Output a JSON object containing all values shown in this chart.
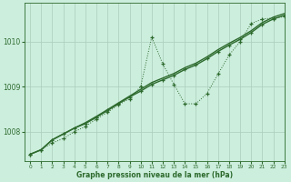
{
  "title": "Graphe pression niveau de la mer (hPa)",
  "bg_color": "#cceedd",
  "grid_color": "#aaccbb",
  "line_color": "#2d6a2d",
  "xlim": [
    -0.5,
    23
  ],
  "ylim": [
    1007.35,
    1010.85
  ],
  "yticks": [
    1008,
    1009,
    1010
  ],
  "ytick_labels": [
    "1008",
    "1009",
    "1010"
  ],
  "xtick_labels": [
    "0",
    "1",
    "2",
    "3",
    "4",
    "5",
    "6",
    "7",
    "8",
    "9",
    "10",
    "11",
    "12",
    "13",
    "14",
    "15",
    "16",
    "17",
    "18",
    "19",
    "20",
    "21",
    "22",
    "23"
  ],
  "s1_x": [
    0,
    1,
    2,
    3,
    4,
    5,
    6,
    7,
    8,
    9,
    10,
    11,
    12,
    13,
    14,
    15,
    16,
    17,
    18,
    19,
    20,
    21,
    22,
    23
  ],
  "s1_y": [
    1007.5,
    1007.6,
    1007.75,
    1007.85,
    1008.0,
    1008.12,
    1008.28,
    1008.43,
    1008.6,
    1008.73,
    1009.0,
    1010.1,
    1009.5,
    1009.05,
    1008.62,
    1008.62,
    1008.85,
    1009.28,
    1009.7,
    1010.0,
    1010.4,
    1010.5,
    1010.52,
    1010.55
  ],
  "s2_x": [
    0,
    1,
    2,
    3,
    4,
    5,
    6,
    7,
    8,
    9,
    10,
    11,
    12,
    13,
    14,
    15,
    16,
    17,
    18,
    19,
    20,
    21,
    22,
    23
  ],
  "s2_y": [
    1007.5,
    1007.6,
    1007.82,
    1007.95,
    1008.08,
    1008.18,
    1008.32,
    1008.47,
    1008.62,
    1008.77,
    1008.9,
    1009.05,
    1009.15,
    1009.25,
    1009.38,
    1009.48,
    1009.62,
    1009.78,
    1009.92,
    1010.05,
    1010.2,
    1010.38,
    1010.5,
    1010.58
  ],
  "s3_x": [
    0,
    1,
    2,
    3,
    4,
    5,
    6,
    7,
    8,
    9,
    10,
    11,
    12,
    13,
    14,
    15,
    16,
    17,
    18,
    19,
    20,
    21,
    22,
    23
  ],
  "s3_y": [
    1007.5,
    1007.6,
    1007.82,
    1007.95,
    1008.08,
    1008.2,
    1008.34,
    1008.49,
    1008.64,
    1008.79,
    1008.94,
    1009.09,
    1009.19,
    1009.29,
    1009.42,
    1009.52,
    1009.66,
    1009.82,
    1009.96,
    1010.09,
    1010.24,
    1010.42,
    1010.54,
    1010.62
  ]
}
